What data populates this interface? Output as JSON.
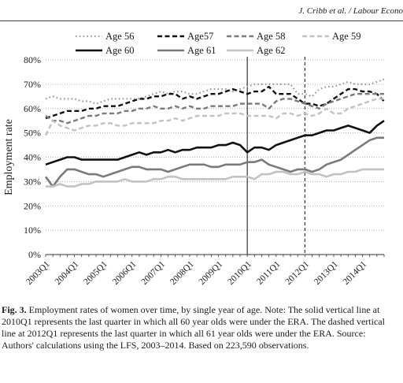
{
  "header": {
    "running_title": "J. Cribb et al. / Labour Econo"
  },
  "caption": {
    "label": "Fig. 3.",
    "text": "Employment rates of women over time, by single year of age. Note: The solid vertical line at 2010Q1 represents the last quarter in which all 60 year olds were under the ERA. The dashed vertical line at 2012Q1 represents the last quarter in which all 61 year olds were under the ERA. Source: Authors' calculations using the LFS, 2003–2014. Based on 223,590 observations."
  },
  "chart_data": {
    "type": "line",
    "title": "",
    "xlabel": "",
    "ylabel": "Employment rate",
    "ylim": [
      0,
      80
    ],
    "yticks": [
      "0%",
      "10%",
      "20%",
      "30%",
      "40%",
      "50%",
      "60%",
      "70%",
      "80%"
    ],
    "x_ticks": [
      "2003Q1",
      "2004Q1",
      "2005Q1",
      "2006Q1",
      "2007Q1",
      "2008Q1",
      "2009Q1",
      "2010Q1",
      "2011Q1",
      "2012Q1",
      "2013Q1",
      "2014Q1"
    ],
    "x_count": 48,
    "grid": "horizontal dotted",
    "legend_position": "top",
    "vertical_lines": [
      {
        "x_label": "2010Q1",
        "style": "solid"
      },
      {
        "x_label": "2012Q1",
        "style": "dashed"
      }
    ],
    "series": [
      {
        "name": "Age 56",
        "style": "dotted",
        "color": "#9a9a9a",
        "width": 2.2,
        "values": [
          64,
          65,
          64,
          64,
          64,
          63,
          63,
          62,
          63,
          64,
          64,
          64,
          64,
          64,
          65,
          66,
          67,
          66,
          67,
          67,
          66,
          66,
          67,
          68,
          68,
          68,
          67,
          68,
          69,
          70,
          70,
          70,
          70,
          70,
          70,
          66,
          66,
          65,
          68,
          69,
          69,
          70,
          71,
          70,
          70,
          70,
          71,
          72
        ]
      },
      {
        "name": "Age57",
        "style": "dashed",
        "color": "#111111",
        "width": 2.4,
        "values": [
          56,
          57,
          58,
          59,
          59,
          59,
          60,
          60,
          61,
          61,
          61,
          62,
          63,
          64,
          64,
          65,
          65,
          66,
          66,
          64,
          65,
          64,
          65,
          66,
          66,
          67,
          68,
          67,
          66,
          67,
          67,
          69,
          66,
          66,
          66,
          64,
          62,
          62,
          61,
          62,
          64,
          66,
          68,
          68,
          67,
          67,
          66,
          63
        ]
      },
      {
        "name": "Age 58",
        "style": "dashed",
        "color": "#7a7a7a",
        "width": 2.4,
        "values": [
          57,
          55,
          55,
          54,
          55,
          56,
          57,
          57,
          58,
          58,
          58,
          59,
          59,
          60,
          60,
          61,
          60,
          60,
          61,
          60,
          61,
          60,
          60,
          61,
          61,
          61,
          61,
          62,
          62,
          62,
          62,
          60,
          63,
          64,
          64,
          63,
          62,
          61,
          60,
          62,
          63,
          64,
          65,
          66,
          66,
          66,
          66,
          66
        ]
      },
      {
        "name": "Age 59",
        "style": "dashed",
        "color": "#c2c2c2",
        "width": 2.4,
        "values": [
          49,
          55,
          53,
          52,
          51,
          52,
          53,
          53,
          54,
          54,
          53,
          53,
          54,
          54,
          54,
          54,
          55,
          55,
          56,
          55,
          56,
          57,
          57,
          57,
          57,
          58,
          58,
          58,
          57,
          57,
          57,
          57,
          56,
          58,
          58,
          57,
          58,
          57,
          58,
          60,
          58,
          58,
          60,
          61,
          62,
          63,
          64,
          64
        ]
      },
      {
        "name": "Age 60",
        "style": "solid",
        "color": "#111111",
        "width": 2.6,
        "values": [
          37,
          38,
          39,
          40,
          40,
          39,
          39,
          39,
          39,
          39,
          39,
          40,
          41,
          42,
          41,
          42,
          42,
          43,
          42,
          43,
          43,
          44,
          44,
          44,
          45,
          45,
          46,
          45,
          42,
          44,
          44,
          43,
          45,
          46,
          47,
          48,
          49,
          49,
          50,
          51,
          51,
          52,
          53,
          52,
          51,
          50,
          53,
          55
        ]
      },
      {
        "name": "Age 61",
        "style": "solid",
        "color": "#7a7a7a",
        "width": 2.6,
        "values": [
          32,
          28,
          32,
          35,
          35,
          34,
          33,
          33,
          32,
          33,
          34,
          35,
          36,
          36,
          35,
          35,
          35,
          34,
          35,
          36,
          37,
          37,
          37,
          36,
          36,
          37,
          37,
          37,
          38,
          38,
          39,
          37,
          36,
          35,
          34,
          35,
          35,
          34,
          35,
          37,
          38,
          39,
          41,
          43,
          45,
          47,
          48,
          48
        ]
      },
      {
        "name": "Age 62",
        "style": "solid",
        "color": "#c2c2c2",
        "width": 2.6,
        "values": [
          28,
          28,
          29,
          28,
          28,
          29,
          29,
          30,
          30,
          30,
          30,
          31,
          30,
          30,
          30,
          31,
          31,
          32,
          32,
          31,
          31,
          31,
          31,
          31,
          31,
          31,
          32,
          32,
          32,
          31,
          33,
          33,
          34,
          34,
          33,
          33,
          34,
          33,
          33,
          32,
          33,
          33,
          34,
          34,
          35,
          35,
          35,
          35
        ]
      }
    ]
  }
}
